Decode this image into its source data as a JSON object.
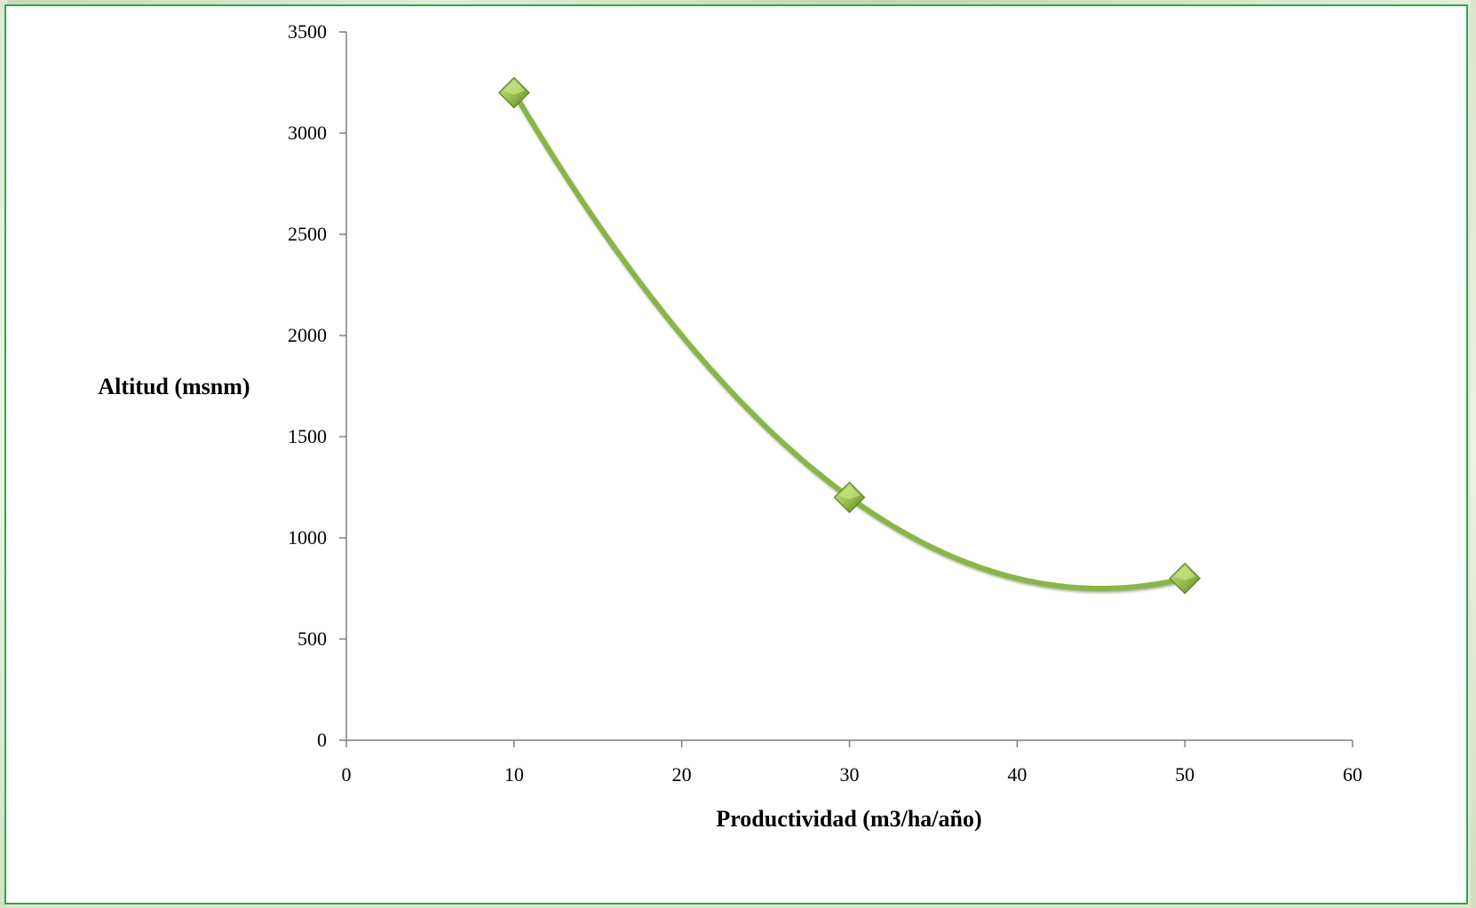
{
  "chart_data": {
    "type": "scatter",
    "xlabel": "Productividad (m3/ha/año)",
    "ylabel": "Altitud (msnm)",
    "xlim": [
      0,
      60
    ],
    "ylim": [
      0,
      3500
    ],
    "x_ticks": [
      0,
      10,
      20,
      30,
      40,
      50,
      60
    ],
    "y_ticks": [
      0,
      500,
      1000,
      1500,
      2000,
      2500,
      3000,
      3500
    ],
    "x_tick_labels": [
      "0",
      "10",
      "20",
      "30",
      "40",
      "50",
      "60"
    ],
    "y_tick_labels": [
      "0",
      "500",
      "1000",
      "1500",
      "2000",
      "2500",
      "3000",
      "3500"
    ],
    "series": [
      {
        "points": [
          {
            "x": 10,
            "y": 3200
          },
          {
            "x": 30,
            "y": 1200
          },
          {
            "x": 50,
            "y": 800
          }
        ],
        "marker": "diamond",
        "line": "smooth",
        "color": "#8ab548"
      }
    ],
    "grid": false,
    "legend": "none"
  },
  "colors": {
    "frame_border": "#2ea84a",
    "axis": "#808080",
    "series_line": "#8ab548",
    "marker_fill": "#9cc24e",
    "marker_dark": "#5e7f2a"
  }
}
